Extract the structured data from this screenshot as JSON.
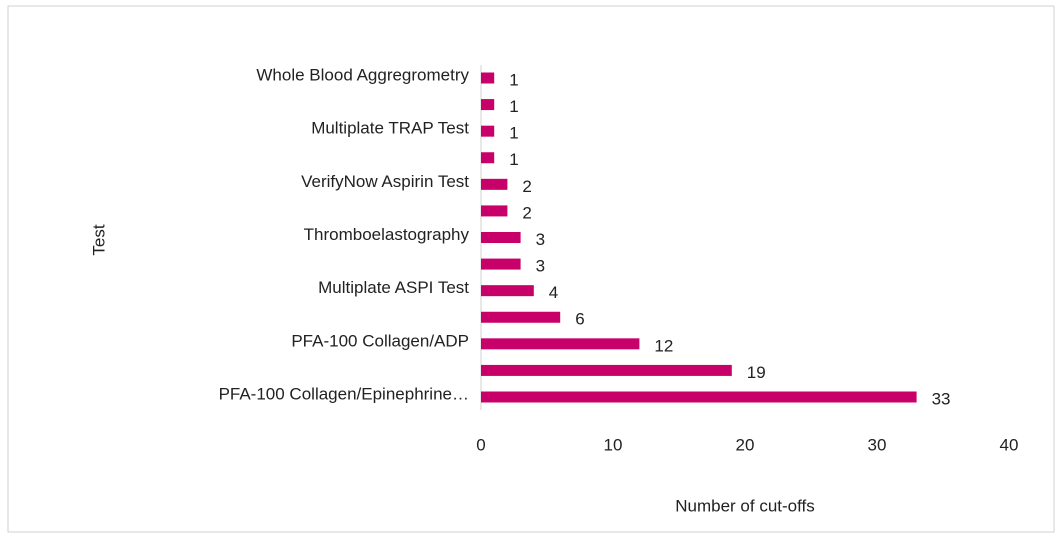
{
  "chart_data": {
    "type": "hbar",
    "categories": [
      "PFA-100 Collagen/Epinephrine…",
      null,
      "PFA-100 Collagen/ADP",
      null,
      "Multiplate ASPI Test",
      null,
      "Thromboelastography",
      null,
      "VerifyNow Aspirin Test",
      null,
      "Multiplate TRAP Test",
      null,
      "Whole Blood Aggregrometry"
    ],
    "values": [
      33,
      19,
      12,
      6,
      4,
      3,
      3,
      2,
      2,
      1,
      1,
      1,
      1
    ],
    "color": "#c8006a",
    "xlim": [
      0,
      40
    ],
    "xticks": [
      0,
      10,
      20,
      30,
      40
    ],
    "xlabel": "Number of cut-offs",
    "ylabel": "Test",
    "grid": false
  }
}
